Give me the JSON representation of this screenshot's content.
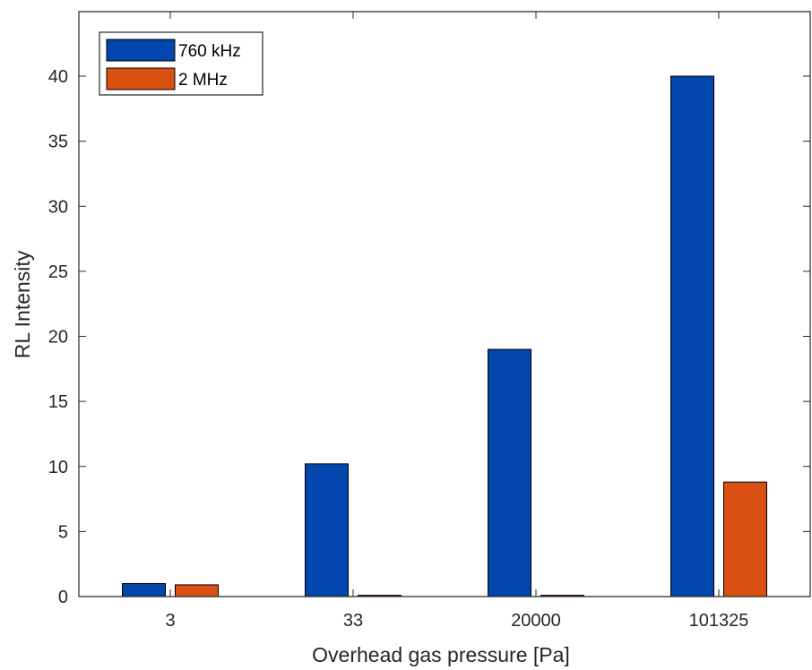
{
  "chart_data": {
    "type": "bar",
    "title": "",
    "xlabel": "Overhead gas pressure [Pa]",
    "ylabel": "RL Intensity",
    "categories": [
      "3",
      "33",
      "20000",
      "101325"
    ],
    "ylim": [
      0,
      40
    ],
    "yticks": [
      0,
      5,
      10,
      15,
      20,
      25,
      30,
      35,
      40
    ],
    "grid": false,
    "legend_position": "top-left",
    "series": [
      {
        "name": "760 kHz",
        "color": "#0046ad",
        "values": [
          1.0,
          10.2,
          19.0,
          40.0
        ]
      },
      {
        "name": "2 MHz",
        "color": "#d95012",
        "values": [
          0.9,
          0.1,
          0.1,
          8.8
        ]
      }
    ]
  }
}
